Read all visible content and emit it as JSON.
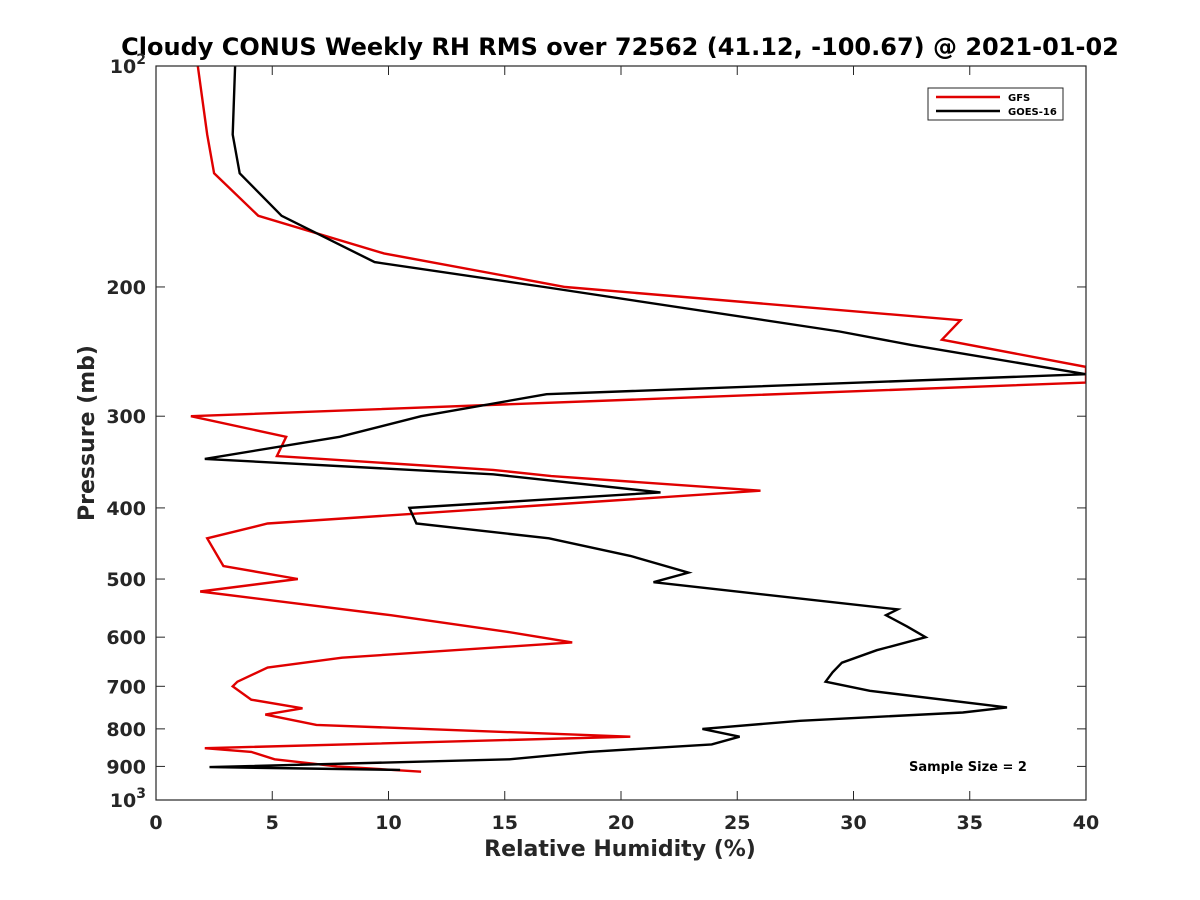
{
  "chart_data": {
    "type": "line",
    "title": "Cloudy CONUS Weekly RH RMS over 72562 (41.12, -100.67) @ 2021-01-02",
    "xlabel": "Relative Humidity (%)",
    "ylabel": "Pressure (mb)",
    "xlim": [
      0,
      40
    ],
    "ylim": [
      100,
      1000
    ],
    "y_scale": "log",
    "y_reversed": true,
    "x_ticks": [
      "0",
      "5",
      "10",
      "15",
      "20",
      "25",
      "30",
      "35",
      "40"
    ],
    "y_ticks": [
      {
        "value": 100,
        "base": "10",
        "exp": "2"
      },
      {
        "value": 200,
        "label": "200"
      },
      {
        "value": 300,
        "label": "300"
      },
      {
        "value": 400,
        "label": "400"
      },
      {
        "value": 500,
        "label": "500"
      },
      {
        "value": 600,
        "label": "600"
      },
      {
        "value": 700,
        "label": "700"
      },
      {
        "value": 800,
        "label": "800"
      },
      {
        "value": 900,
        "label": "900"
      },
      {
        "value": 1000,
        "base": "10",
        "exp": "3"
      }
    ],
    "grid": false,
    "legend_position": "top-right",
    "annotation": "Sample Size = 2",
    "series": [
      {
        "name": "GFS",
        "color": "#e00000",
        "points": [
          [
            1.8,
            100
          ],
          [
            2.2,
            124
          ],
          [
            2.5,
            140
          ],
          [
            4.4,
            160
          ],
          [
            9.8,
            180
          ],
          [
            17.6,
            200
          ],
          [
            34.6,
            222
          ],
          [
            33.8,
            236
          ],
          [
            40,
            257
          ],
          [
            40,
            270
          ],
          [
            1.5,
            300
          ],
          [
            5.6,
            320
          ],
          [
            5.2,
            340
          ],
          [
            14.5,
            355
          ],
          [
            17,
            362
          ],
          [
            26,
            379
          ],
          [
            4.8,
            420
          ],
          [
            2.2,
            440
          ],
          [
            2.9,
            480
          ],
          [
            6.1,
            500
          ],
          [
            1.9,
            520
          ],
          [
            10.1,
            560
          ],
          [
            15.1,
            590
          ],
          [
            17.9,
            610
          ],
          [
            8,
            640
          ],
          [
            4.8,
            660
          ],
          [
            3.5,
            690
          ],
          [
            3.3,
            700
          ],
          [
            4.1,
            730
          ],
          [
            6.3,
            750
          ],
          [
            4.7,
            765
          ],
          [
            6.9,
            790
          ],
          [
            20.4,
            820
          ],
          [
            2.1,
            850
          ],
          [
            4.1,
            860
          ],
          [
            5.1,
            880
          ],
          [
            7.8,
            900
          ],
          [
            11.4,
            915
          ]
        ]
      },
      {
        "name": "GOES-16",
        "color": "#000000",
        "points": [
          [
            3.4,
            100
          ],
          [
            3.3,
            124
          ],
          [
            3.6,
            140
          ],
          [
            5.4,
            160
          ],
          [
            9.4,
            185
          ],
          [
            16.7,
            200
          ],
          [
            29.4,
            230
          ],
          [
            32.5,
            240
          ],
          [
            40,
            263
          ],
          [
            16.8,
            280
          ],
          [
            11.4,
            300
          ],
          [
            7.9,
            320
          ],
          [
            2.1,
            343
          ],
          [
            14.5,
            360
          ],
          [
            21.7,
            381
          ],
          [
            10.9,
            400
          ],
          [
            11.2,
            420
          ],
          [
            16.9,
            440
          ],
          [
            20.4,
            465
          ],
          [
            22.9,
            490
          ],
          [
            21.4,
            505
          ],
          [
            31.9,
            550
          ],
          [
            31.4,
            560
          ],
          [
            32.3,
            580
          ],
          [
            33.1,
            600
          ],
          [
            31,
            625
          ],
          [
            29.5,
            650
          ],
          [
            29.1,
            670
          ],
          [
            28.8,
            690
          ],
          [
            30.7,
            710
          ],
          [
            36.6,
            748
          ],
          [
            34.7,
            760
          ],
          [
            27.7,
            780
          ],
          [
            23.5,
            800
          ],
          [
            25.1,
            820
          ],
          [
            23.9,
            840
          ],
          [
            18.6,
            860
          ],
          [
            15.2,
            880
          ],
          [
            2.3,
            902
          ],
          [
            10.5,
            910
          ]
        ]
      }
    ]
  }
}
